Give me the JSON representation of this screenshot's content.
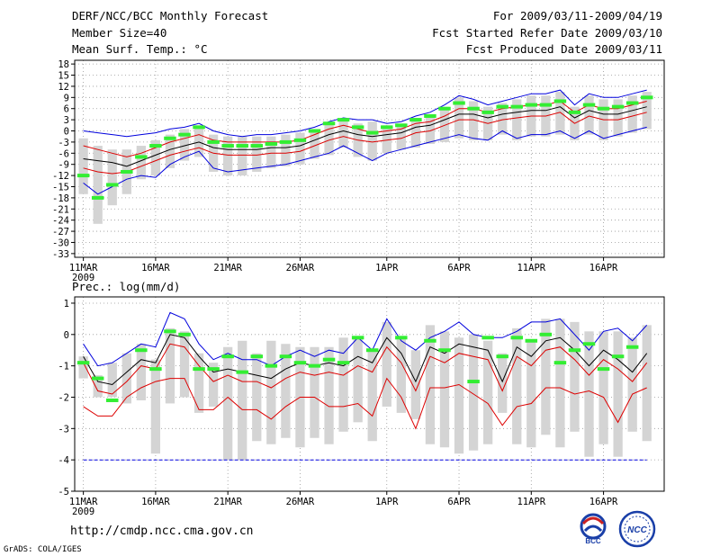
{
  "header": {
    "title": "DERF/NCC/BCC Monthly Forecast",
    "member_size": "Member Size=40",
    "variable": "Mean Surf. Temp.: °C",
    "forecast_period": "For 2009/03/11-2009/04/19",
    "start_refer": "Fcst Started Refer Date 2009/03/10",
    "produced": "Fcst Produced Date 2009/03/11"
  },
  "footer": {
    "url": "http://cmdp.ncc.cma.gov.cn",
    "credit": "GrADS: COLA/IGES",
    "logo_bcc": "BCC",
    "logo_ncc": "NCC"
  },
  "colors": {
    "upper": "#0000dd",
    "lower": "#0000dd",
    "p75": "#dd0000",
    "p25": "#dd0000",
    "median": "#000000",
    "obs": "#33ee33",
    "box": "#d4d4d4",
    "grid": "#999999"
  },
  "chart_data": [
    {
      "type": "box-line",
      "title": "Mean Surf. Temp.: °C",
      "ylim": [
        -34,
        19
      ],
      "yticks": [
        18,
        15,
        12,
        9,
        6,
        3,
        0,
        -3,
        -6,
        -9,
        -12,
        -15,
        -18,
        -21,
        -24,
        -27,
        -30,
        -33
      ],
      "xticks": [
        "11MAR",
        "16MAR",
        "21MAR",
        "26MAR",
        "1APR",
        "6APR",
        "11APR",
        "16APR"
      ],
      "xtick_index": [
        0,
        5,
        10,
        15,
        21,
        26,
        31,
        36
      ],
      "year_label": "2009",
      "days": 40,
      "series": [
        {
          "name": "upper",
          "values": [
            0,
            -0.5,
            -1,
            -1.5,
            -1,
            -0.5,
            0.5,
            1,
            2,
            0,
            -1,
            -1.5,
            -1,
            -1,
            -0.5,
            0,
            1,
            2.5,
            3.5,
            3,
            3,
            2,
            2.5,
            4,
            5,
            7,
            9.5,
            8.5,
            7,
            8,
            9,
            10,
            10,
            11,
            7,
            10,
            9,
            9,
            10,
            11
          ]
        },
        {
          "name": "p75",
          "values": [
            -4,
            -5,
            -6,
            -7,
            -6,
            -4.5,
            -3,
            -2,
            -1,
            -2.5,
            -3,
            -3,
            -3,
            -3,
            -3,
            -2.5,
            -1,
            0.5,
            1.5,
            0.5,
            -0.5,
            0,
            0.5,
            2,
            2.5,
            4,
            6,
            6,
            5,
            6,
            6.5,
            7,
            7,
            8,
            5,
            7,
            6,
            6,
            7,
            8
          ]
        },
        {
          "name": "median",
          "values": [
            -7.5,
            -8,
            -8.5,
            -9.5,
            -8,
            -6.5,
            -5,
            -4,
            -3,
            -4.5,
            -5,
            -5,
            -5,
            -4.5,
            -4.5,
            -4,
            -2.5,
            -1,
            0,
            -1,
            -1.5,
            -1,
            -0.5,
            1,
            1.5,
            3,
            4.5,
            4.5,
            3.5,
            4.5,
            5,
            5.5,
            5.5,
            6.5,
            3.5,
            5.5,
            4.5,
            4.5,
            5.5,
            6.5
          ]
        },
        {
          "name": "p25",
          "values": [
            -10,
            -11,
            -11.5,
            -11,
            -9.5,
            -8,
            -6.5,
            -5.5,
            -4.5,
            -6,
            -6.5,
            -6.5,
            -6.5,
            -6,
            -6,
            -5.5,
            -4,
            -2.5,
            -1.5,
            -2.5,
            -3,
            -2.5,
            -2,
            -0.5,
            0,
            1.5,
            3,
            3,
            2,
            3,
            3.5,
            4,
            4,
            5,
            2,
            4,
            3,
            3,
            4,
            5
          ]
        },
        {
          "name": "lower",
          "values": [
            -14,
            -17,
            -15,
            -13,
            -12,
            -12.5,
            -9,
            -7,
            -5.5,
            -10,
            -11,
            -10.5,
            -10,
            -9.5,
            -9,
            -8,
            -7,
            -6,
            -4,
            -6,
            -8,
            -6,
            -5,
            -4,
            -3,
            -2,
            -1,
            -2,
            -2.5,
            0,
            -2,
            -1,
            -1,
            0,
            -2,
            0,
            -2,
            -1,
            0,
            1
          ]
        }
      ],
      "box_low": [
        -17,
        -25,
        -20,
        -17,
        -13,
        -12,
        -10,
        -8,
        -7,
        -11,
        -12,
        -12,
        -11,
        -10,
        -9.5,
        -9,
        -7.5,
        -6.5,
        -4.5,
        -7,
        -8,
        -6,
        -5,
        -4.5,
        -3.5,
        -3,
        -2,
        -2.5,
        -2.5,
        -1,
        -2.5,
        -1.5,
        -1.5,
        -1,
        -2.5,
        -1,
        -2.5,
        -1.5,
        -0.5,
        0.5
      ],
      "box_high": [
        -2,
        -4,
        -5,
        -5,
        -4,
        -2.5,
        -1,
        0.5,
        1.5,
        -1,
        -1.5,
        -1.5,
        -1.5,
        -1.5,
        -1,
        -0.5,
        0.5,
        2,
        3,
        2,
        2.5,
        1.5,
        2,
        3.5,
        4.5,
        6.5,
        9,
        8,
        6.5,
        7.5,
        8.5,
        9.5,
        9.5,
        10.5,
        6.5,
        9.5,
        8.5,
        8.5,
        9.5,
        10.5
      ],
      "observed": [
        -12,
        -18,
        -14.5,
        -11,
        -7,
        -4,
        -2,
        -1,
        1,
        -3,
        -4,
        -4,
        -4,
        -3.5,
        -3,
        -2.5,
        0,
        2,
        3,
        1,
        -0.5,
        1,
        1.5,
        3,
        4,
        6,
        7.5,
        6,
        5,
        6.5,
        6.5,
        7,
        7,
        8,
        5,
        7,
        6,
        6.5,
        7.5,
        9
      ]
    },
    {
      "type": "box-line",
      "title": "Prec.: log(mm/d)",
      "ylim": [
        -5,
        1.2
      ],
      "yticks": [
        1,
        0,
        -1,
        -2,
        -3,
        -4,
        -5
      ],
      "xticks": [
        "11MAR",
        "16MAR",
        "21MAR",
        "26MAR",
        "1APR",
        "6APR",
        "11APR",
        "16APR"
      ],
      "xtick_index": [
        0,
        5,
        10,
        15,
        21,
        26,
        31,
        36
      ],
      "year_label": "2009",
      "days": 40,
      "series": [
        {
          "name": "upper",
          "values": [
            -0.3,
            -1,
            -0.9,
            -0.6,
            -0.3,
            -0.4,
            0.7,
            0.5,
            -0.3,
            -0.8,
            -0.6,
            -0.8,
            -0.8,
            -1,
            -0.7,
            -0.5,
            -0.7,
            -0.5,
            -0.6,
            -0.1,
            -0.5,
            0.5,
            -0.2,
            -0.5,
            -0.1,
            0.1,
            0.4,
            0,
            -0.1,
            -0.1,
            0.1,
            0.4,
            0.4,
            0.5,
            0,
            -0.5,
            0.1,
            0.2,
            -0.2,
            0.3
          ]
        },
        {
          "name": "median",
          "values": [
            -0.7,
            -1.5,
            -1.6,
            -1.2,
            -0.8,
            -0.9,
            0,
            -0.1,
            -0.7,
            -1.2,
            -1.1,
            -1.2,
            -1.3,
            -1.4,
            -1.1,
            -0.9,
            -1,
            -0.9,
            -1,
            -0.7,
            -0.9,
            -0.1,
            -0.6,
            -1.5,
            -0.4,
            -0.6,
            -0.3,
            -0.4,
            -0.5,
            -1.5,
            -0.4,
            -0.7,
            -0.2,
            -0.1,
            -0.5,
            -1,
            -0.5,
            -0.8,
            -1.2,
            -0.6
          ]
        },
        {
          "name": "p75",
          "values": [
            -0.9,
            -1.8,
            -1.9,
            -1.5,
            -1,
            -1.1,
            -0.3,
            -0.4,
            -1,
            -1.5,
            -1.3,
            -1.5,
            -1.5,
            -1.7,
            -1.4,
            -1.2,
            -1.3,
            -1.2,
            -1.3,
            -1,
            -1.2,
            -0.4,
            -0.9,
            -1.8,
            -0.7,
            -0.9,
            -0.6,
            -0.7,
            -0.8,
            -1.8,
            -0.7,
            -1,
            -0.5,
            -0.4,
            -0.8,
            -1.3,
            -0.8,
            -1.1,
            -1.5,
            -0.9
          ]
        },
        {
          "name": "p25",
          "values": [
            -2.3,
            -2.6,
            -2.6,
            -2,
            -1.7,
            -1.5,
            -1.4,
            -1.4,
            -2.4,
            -2.4,
            -2,
            -2.4,
            -2.4,
            -2.7,
            -2.3,
            -2,
            -2,
            -2.3,
            -2.3,
            -2.2,
            -2.6,
            -1.4,
            -2,
            -3,
            -1.7,
            -1.7,
            -1.6,
            -1.9,
            -2.2,
            -2.9,
            -2.3,
            -2.2,
            -1.7,
            -1.7,
            -1.9,
            -1.8,
            -2,
            -2.8,
            -1.9,
            -1.7
          ]
        },
        {
          "name": "lower",
          "values": [
            -4,
            -4,
            -4,
            -4,
            -4,
            -4,
            -4,
            -4,
            -4,
            -4,
            -4,
            -4,
            -4,
            -4,
            -4,
            -4,
            -4,
            -4,
            -4,
            -4,
            -4,
            -4,
            -4,
            -4,
            -4,
            -4,
            -4,
            -4,
            -4,
            -4,
            -4,
            -4,
            -4,
            -4,
            -4,
            -4,
            -4,
            -4,
            -4,
            -4
          ]
        }
      ],
      "box_low": [
        -1.4,
        -2,
        -2,
        -2.2,
        -2.1,
        -3.8,
        -2.2,
        -2,
        -2.5,
        -2.3,
        -4,
        -4,
        -3.4,
        -3.5,
        -3.3,
        -3.6,
        -3.3,
        -3.5,
        -3.1,
        -2.8,
        -3.4,
        -2.3,
        -2.5,
        -2.7,
        -3.5,
        -3.6,
        -3.8,
        -3.7,
        -3.5,
        -2.5,
        -3.5,
        -3.6,
        -3.2,
        -3.6,
        -3.1,
        -3.9,
        -3.5,
        -3.9,
        -3.1,
        -3.4
      ],
      "box_high": [
        -0.7,
        -1.3,
        -0.9,
        -0.6,
        -0.3,
        -0.8,
        0.2,
        0.1,
        -0.6,
        -0.9,
        -0.4,
        -0.2,
        -0.6,
        -0.2,
        -0.3,
        -0.4,
        -0.4,
        -0.4,
        -0.1,
        -0.1,
        -0.5,
        0.4,
        -0.1,
        -0.5,
        0.3,
        0.1,
        -0.1,
        0,
        -0.2,
        -0.6,
        0.2,
        -0.2,
        0.5,
        0.5,
        0.4,
        0.1,
        0.1,
        0.1,
        -0.1,
        0.3
      ],
      "observed": [
        -0.9,
        -1.4,
        -2.1,
        null,
        -0.5,
        -1.1,
        0.1,
        0,
        -1.1,
        -1.1,
        -0.7,
        -1.2,
        -0.7,
        -1,
        -0.7,
        -0.9,
        -1,
        -0.8,
        -0.9,
        -0.1,
        -0.5,
        null,
        -0.1,
        null,
        -0.2,
        -0.5,
        null,
        -1.5,
        -0.1,
        -0.7,
        -0.1,
        -0.2,
        0,
        -0.9,
        -0.5,
        -0.3,
        -1.1,
        -0.7,
        -0.4,
        null
      ]
    }
  ],
  "panel2_label": "Prec.: log(mm/d)"
}
